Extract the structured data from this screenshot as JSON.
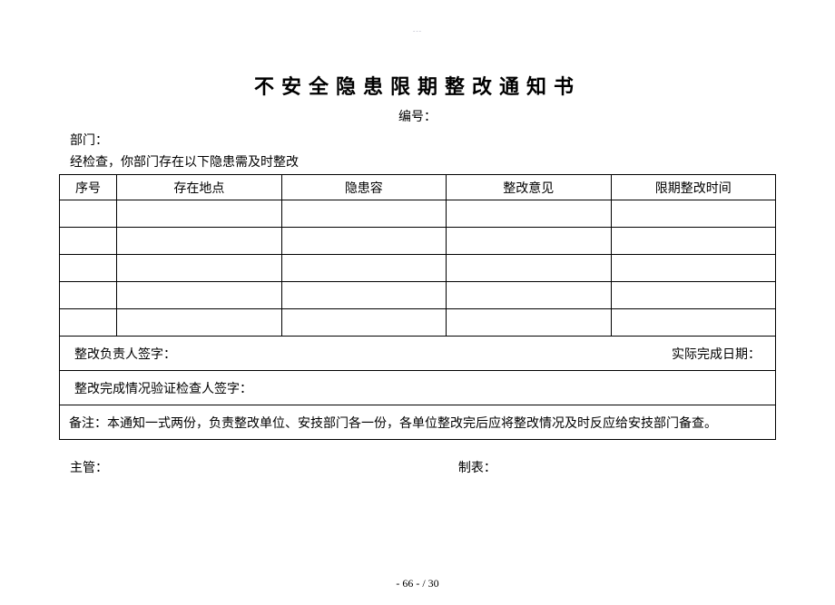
{
  "tiny_header": "---",
  "title": "不安全隐患限期整改通知书",
  "serial_label": "编号：",
  "dept_label": "部门：",
  "intro": "经检查，你部门存在以下隐患需及时整改",
  "columns": {
    "c0": "序号",
    "c1": "存在地点",
    "c2": "隐患容",
    "c3": "整改意见",
    "c4": "限期整改时间"
  },
  "col_widths": {
    "c0": "8%",
    "c1": "23%",
    "c2": "23%",
    "c3": "23%",
    "c4": "23%"
  },
  "row_count": 5,
  "sig1_left": "整改负责人签字：",
  "sig1_right": "实际完成日期：",
  "sig2": "整改完成情况验证检查人签字：",
  "note": "备注：本通知一式两份，负责整改单位、安技部门各一份，各单位整改完后应将整改情况及时反应给安技部门备查。",
  "footer_left": "主管：",
  "footer_right": "制表：",
  "page_num": "- 66 -  / 30",
  "text_color": "#000000",
  "bg_color": "#ffffff",
  "border_color": "#000000"
}
